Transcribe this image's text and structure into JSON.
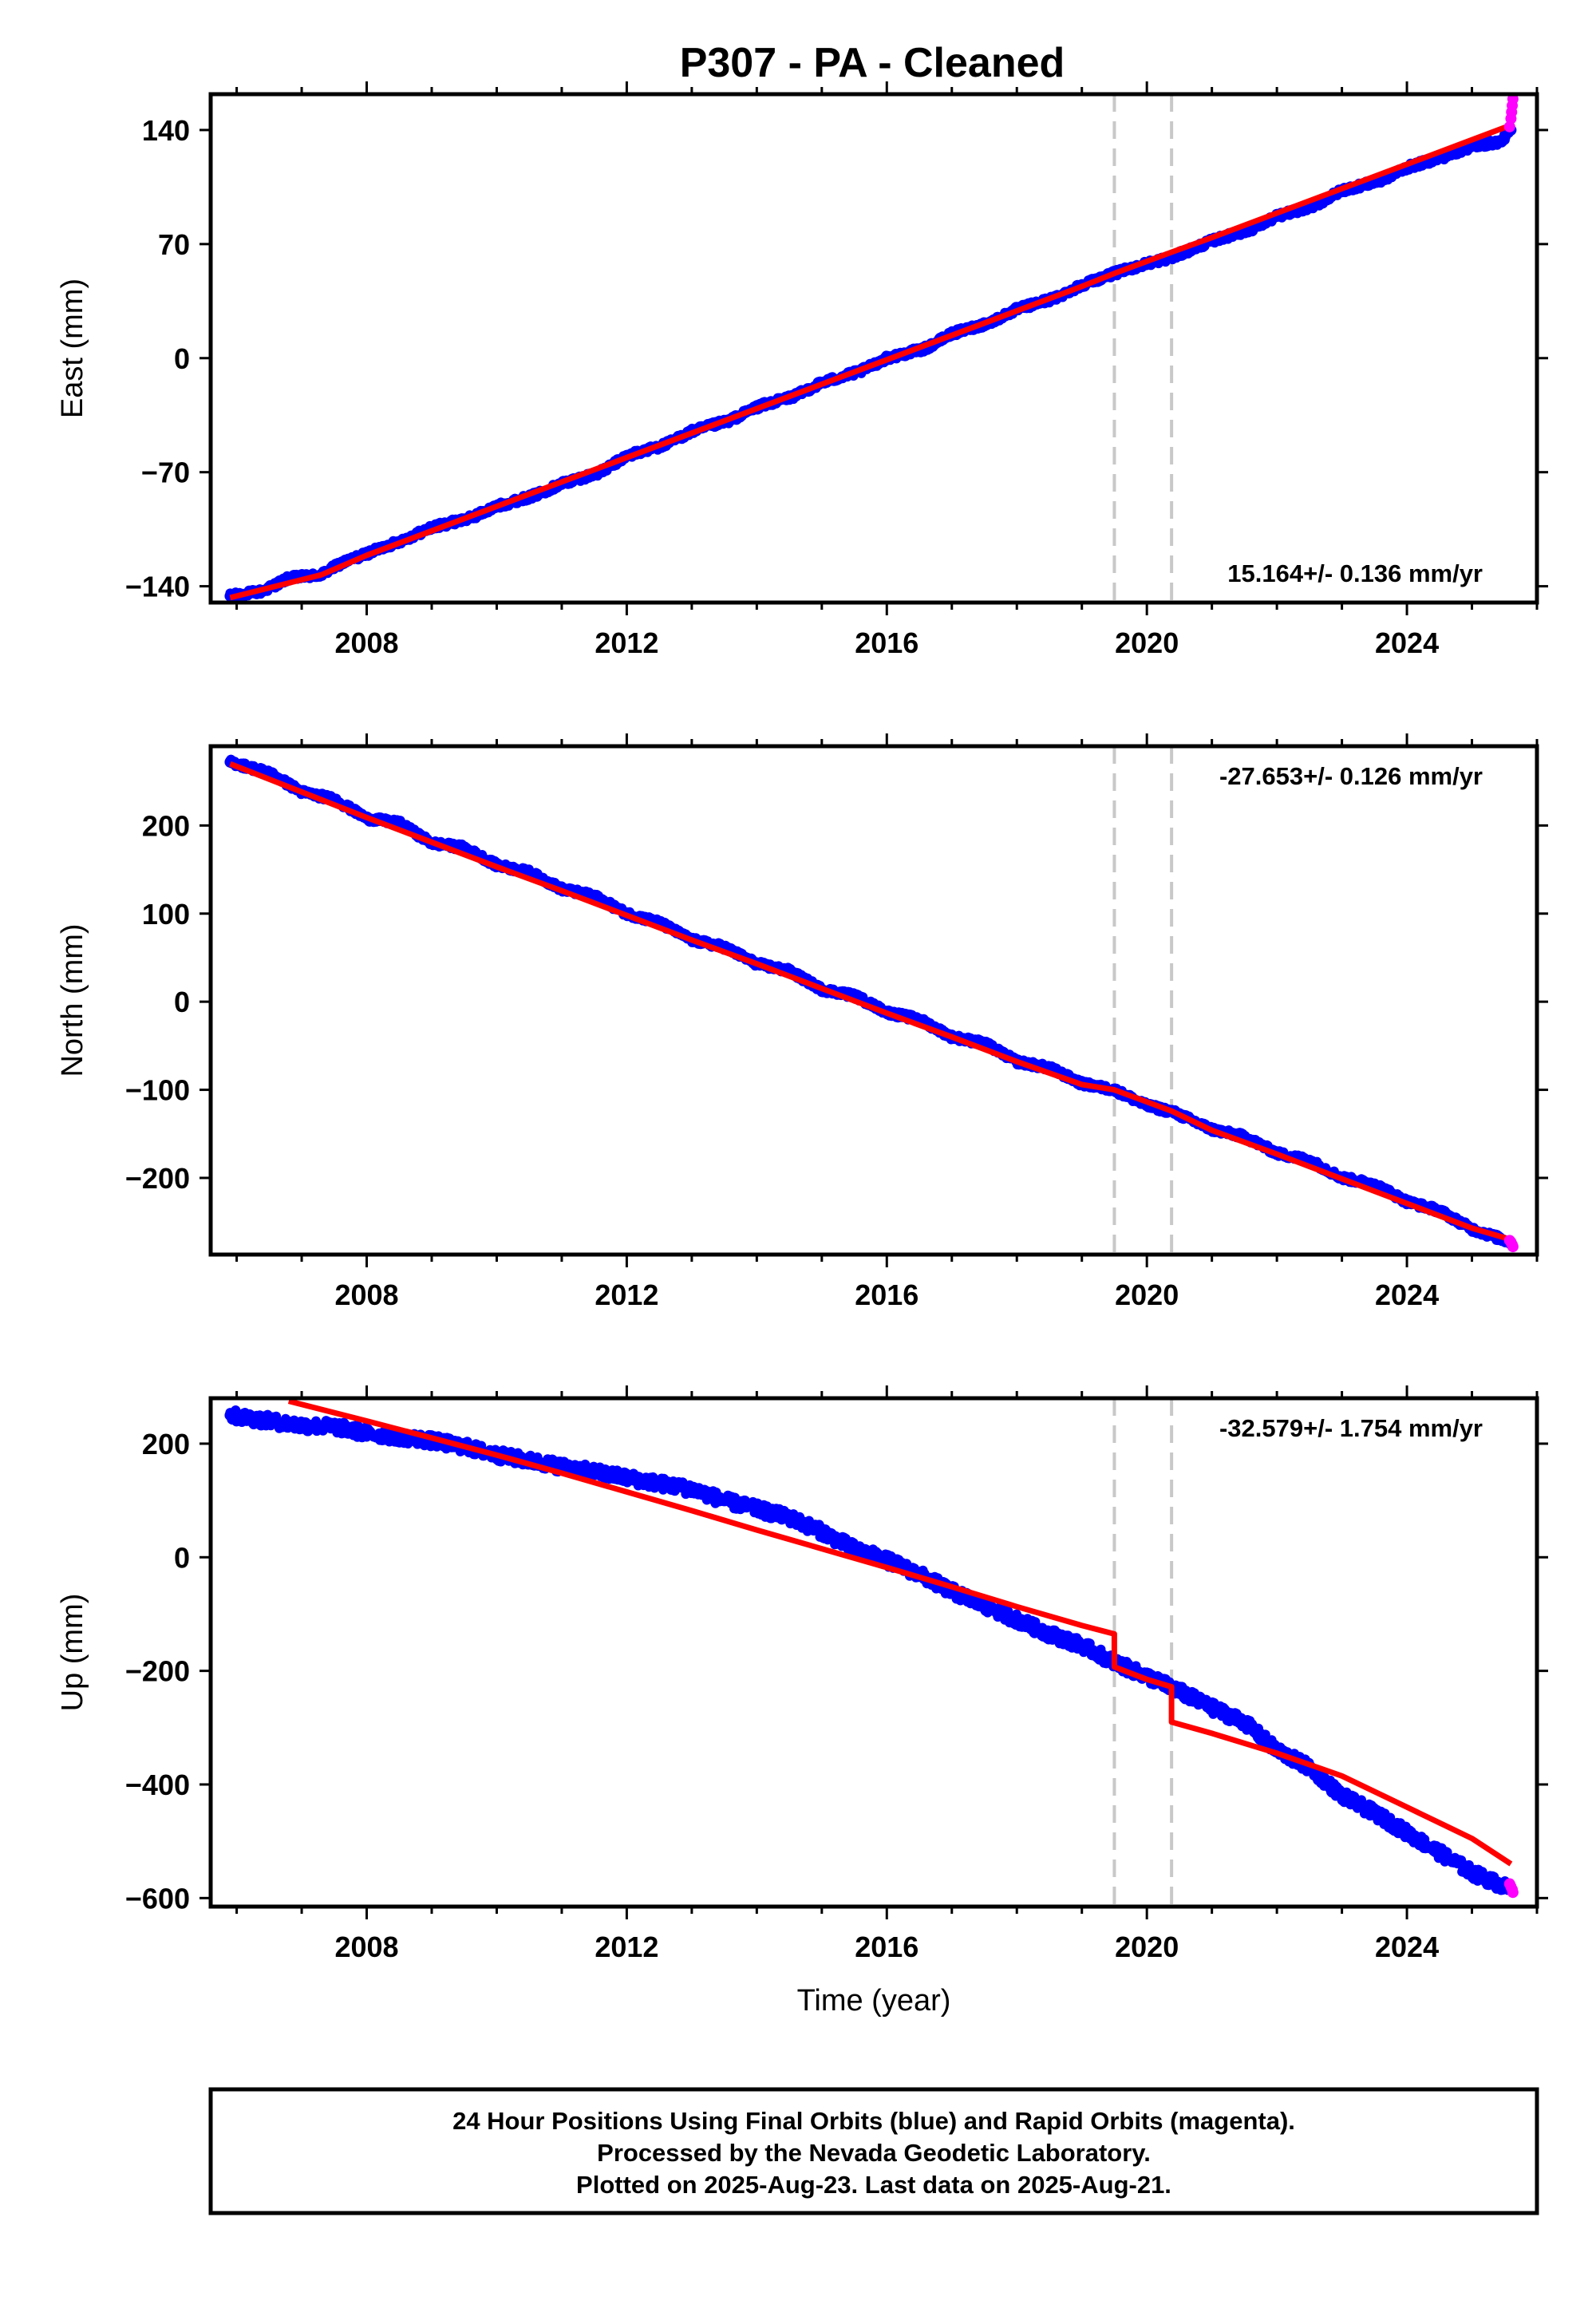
{
  "title": "P307  - PA - Cleaned",
  "colors": {
    "final": "#0000ff",
    "rapid": "#ff00ff",
    "model": "#ff0000",
    "event_line": "#c8c8c8",
    "frame": "#000000"
  },
  "chart_data": [
    {
      "type": "scatter",
      "ylabel": "East (mm)",
      "xlabel": "",
      "xlim": [
        2005.6,
        2026.0
      ],
      "ylim": [
        -150,
        162
      ],
      "yticks": [
        -140,
        -70,
        0,
        70,
        140
      ],
      "xticks": [
        2008,
        2012,
        2016,
        2020,
        2024
      ],
      "grid": false,
      "rate": "15.164+/- 0.136 mm/yr",
      "rate_position": "bottom-right",
      "event_lines": [
        2019.5,
        2020.38
      ],
      "final_series": [
        [
          2005.9,
          -146
        ],
        [
          2006.4,
          -143
        ],
        [
          2006.8,
          -135
        ],
        [
          2007.3,
          -133
        ],
        [
          2007.6,
          -126
        ],
        [
          2008.0,
          -120
        ],
        [
          2008.6,
          -111
        ],
        [
          2009.0,
          -104
        ],
        [
          2009.6,
          -98
        ],
        [
          2010.0,
          -91
        ],
        [
          2010.6,
          -84
        ],
        [
          2011.0,
          -77
        ],
        [
          2011.6,
          -70
        ],
        [
          2012.0,
          -60
        ],
        [
          2012.6,
          -53
        ],
        [
          2013.0,
          -45
        ],
        [
          2013.6,
          -38
        ],
        [
          2014.0,
          -30
        ],
        [
          2014.6,
          -23
        ],
        [
          2015.0,
          -15
        ],
        [
          2015.6,
          -8
        ],
        [
          2016.0,
          0
        ],
        [
          2016.6,
          6
        ],
        [
          2017.0,
          15
        ],
        [
          2017.6,
          22
        ],
        [
          2018.0,
          30
        ],
        [
          2018.6,
          37
        ],
        [
          2019.0,
          45
        ],
        [
          2019.5,
          52
        ],
        [
          2020.0,
          58
        ],
        [
          2020.4,
          62
        ],
        [
          2021.0,
          72
        ],
        [
          2021.6,
          79
        ],
        [
          2022.0,
          87
        ],
        [
          2022.6,
          94
        ],
        [
          2023.0,
          103
        ],
        [
          2023.6,
          109
        ],
        [
          2024.0,
          117
        ],
        [
          2024.6,
          124
        ],
        [
          2025.0,
          130
        ],
        [
          2025.45,
          133
        ],
        [
          2025.6,
          140
        ]
      ],
      "model_series": [
        [
          2005.9,
          -147
        ],
        [
          2006.5,
          -141
        ],
        [
          2007.3,
          -133
        ],
        [
          2008.0,
          -121
        ],
        [
          2009.0,
          -106
        ],
        [
          2010.0,
          -91
        ],
        [
          2011.0,
          -76
        ],
        [
          2012.0,
          -61
        ],
        [
          2013.0,
          -46
        ],
        [
          2014.0,
          -31
        ],
        [
          2015.0,
          -16
        ],
        [
          2016.0,
          -1
        ],
        [
          2017.0,
          14
        ],
        [
          2018.0,
          29
        ],
        [
          2019.0,
          44
        ],
        [
          2019.5,
          52
        ],
        [
          2020.38,
          65
        ],
        [
          2021.0,
          74
        ],
        [
          2022.0,
          89
        ],
        [
          2023.0,
          104
        ],
        [
          2024.0,
          119
        ],
        [
          2025.0,
          134
        ],
        [
          2025.6,
          143
        ]
      ],
      "rapid_series": [
        [
          2025.58,
          142
        ],
        [
          2025.6,
          147
        ],
        [
          2025.61,
          151
        ],
        [
          2025.62,
          155
        ],
        [
          2025.63,
          159
        ]
      ]
    },
    {
      "type": "scatter",
      "ylabel": "North (mm)",
      "xlabel": "",
      "xlim": [
        2005.6,
        2026.0
      ],
      "ylim": [
        -287,
        290
      ],
      "yticks": [
        -200,
        -100,
        0,
        100,
        200
      ],
      "xticks": [
        2008,
        2012,
        2016,
        2020,
        2024
      ],
      "grid": false,
      "rate": "-27.653+/- 0.126 mm/yr",
      "rate_position": "top-right",
      "event_lines": [
        2019.5,
        2020.38
      ],
      "final_series": [
        [
          2005.9,
          272
        ],
        [
          2006.5,
          260
        ],
        [
          2007.0,
          238
        ],
        [
          2007.5,
          230
        ],
        [
          2008.0,
          208
        ],
        [
          2008.5,
          203
        ],
        [
          2009.0,
          180
        ],
        [
          2009.5,
          175
        ],
        [
          2010.0,
          155
        ],
        [
          2010.5,
          147
        ],
        [
          2011.0,
          128
        ],
        [
          2011.5,
          120
        ],
        [
          2012.0,
          100
        ],
        [
          2012.5,
          90
        ],
        [
          2013.0,
          70
        ],
        [
          2013.5,
          62
        ],
        [
          2014.0,
          43
        ],
        [
          2014.5,
          35
        ],
        [
          2015.0,
          14
        ],
        [
          2015.5,
          7
        ],
        [
          2016.0,
          -12
        ],
        [
          2016.5,
          -20
        ],
        [
          2017.0,
          -40
        ],
        [
          2017.5,
          -47
        ],
        [
          2018.0,
          -68
        ],
        [
          2018.5,
          -75
        ],
        [
          2019.0,
          -93
        ],
        [
          2019.5,
          -100
        ],
        [
          2020.0,
          -118
        ],
        [
          2020.4,
          -125
        ],
        [
          2021.0,
          -145
        ],
        [
          2021.5,
          -153
        ],
        [
          2022.0,
          -172
        ],
        [
          2022.5,
          -180
        ],
        [
          2023.0,
          -200
        ],
        [
          2023.5,
          -207
        ],
        [
          2024.0,
          -227
        ],
        [
          2024.5,
          -237
        ],
        [
          2025.0,
          -258
        ],
        [
          2025.6,
          -273
        ]
      ],
      "model_series": [
        [
          2005.9,
          270
        ],
        [
          2007.0,
          238
        ],
        [
          2008.0,
          209
        ],
        [
          2009.0,
          181
        ],
        [
          2010.0,
          153
        ],
        [
          2011.0,
          126
        ],
        [
          2012.0,
          98
        ],
        [
          2013.0,
          70
        ],
        [
          2014.0,
          43
        ],
        [
          2015.0,
          15
        ],
        [
          2016.0,
          -13
        ],
        [
          2017.0,
          -40
        ],
        [
          2018.0,
          -68
        ],
        [
          2019.0,
          -94
        ],
        [
          2019.5,
          -100
        ],
        [
          2020.38,
          -124
        ],
        [
          2021.0,
          -146
        ],
        [
          2022.0,
          -173
        ],
        [
          2023.0,
          -201
        ],
        [
          2024.0,
          -229
        ],
        [
          2025.0,
          -257
        ],
        [
          2025.6,
          -270
        ]
      ],
      "rapid_series": [
        [
          2025.58,
          -271
        ],
        [
          2025.6,
          -273
        ],
        [
          2025.62,
          -276
        ],
        [
          2025.63,
          -278
        ]
      ]
    },
    {
      "type": "scatter",
      "ylabel": "Up (mm)",
      "xlabel": "Time (year)",
      "xlim": [
        2005.6,
        2026.0
      ],
      "ylim": [
        -615,
        280
      ],
      "yticks": [
        -600,
        -400,
        -200,
        0,
        200
      ],
      "xticks": [
        2008,
        2012,
        2016,
        2020,
        2024
      ],
      "grid": false,
      "rate": "-32.579+/- 1.754 mm/yr",
      "rate_position": "top-right",
      "event_lines": [
        2019.5,
        2020.38
      ],
      "final_series": [
        [
          2005.9,
          250
        ],
        [
          2006.5,
          240
        ],
        [
          2007.0,
          232
        ],
        [
          2007.5,
          230
        ],
        [
          2008.0,
          218
        ],
        [
          2008.5,
          212
        ],
        [
          2009.0,
          205
        ],
        [
          2009.5,
          195
        ],
        [
          2010.0,
          180
        ],
        [
          2010.5,
          170
        ],
        [
          2011.0,
          160
        ],
        [
          2011.5,
          150
        ],
        [
          2012.0,
          140
        ],
        [
          2012.5,
          130
        ],
        [
          2013.0,
          120
        ],
        [
          2013.5,
          100
        ],
        [
          2014.0,
          85
        ],
        [
          2014.5,
          70
        ],
        [
          2015.0,
          45
        ],
        [
          2015.5,
          15
        ],
        [
          2016.0,
          -5
        ],
        [
          2016.5,
          -30
        ],
        [
          2017.0,
          -60
        ],
        [
          2017.5,
          -85
        ],
        [
          2018.0,
          -110
        ],
        [
          2018.5,
          -135
        ],
        [
          2019.0,
          -155
        ],
        [
          2019.5,
          -185
        ],
        [
          2020.0,
          -210
        ],
        [
          2020.4,
          -230
        ],
        [
          2021.0,
          -265
        ],
        [
          2021.5,
          -290
        ],
        [
          2022.0,
          -340
        ],
        [
          2022.5,
          -370
        ],
        [
          2023.0,
          -420
        ],
        [
          2023.5,
          -450
        ],
        [
          2024.0,
          -485
        ],
        [
          2024.5,
          -520
        ],
        [
          2025.0,
          -555
        ],
        [
          2025.6,
          -585
        ]
      ],
      "model_series": [
        [
          2006.8,
          275
        ],
        [
          2008.0,
          240
        ],
        [
          2009.0,
          210
        ],
        [
          2010.0,
          180
        ],
        [
          2011.0,
          148
        ],
        [
          2012.0,
          115
        ],
        [
          2013.0,
          82
        ],
        [
          2014.0,
          48
        ],
        [
          2015.0,
          15
        ],
        [
          2016.0,
          -18
        ],
        [
          2017.0,
          -52
        ],
        [
          2018.0,
          -87
        ],
        [
          2019.0,
          -120
        ],
        [
          2019.5,
          -135
        ],
        [
          2019.5,
          -193
        ],
        [
          2020.0,
          -215
        ],
        [
          2020.38,
          -228
        ],
        [
          2020.38,
          -290
        ],
        [
          2021.0,
          -310
        ],
        [
          2022.0,
          -345
        ],
        [
          2023.0,
          -385
        ],
        [
          2024.0,
          -440
        ],
        [
          2025.0,
          -495
        ],
        [
          2025.6,
          -540
        ]
      ],
      "rapid_series": [
        [
          2025.58,
          -575
        ],
        [
          2025.6,
          -580
        ],
        [
          2025.62,
          -585
        ],
        [
          2025.63,
          -590
        ]
      ]
    }
  ],
  "footer": {
    "line1": "24 Hour Positions Using Final Orbits (blue) and Rapid Orbits (magenta).",
    "line2": "Processed by the Nevada Geodetic Laboratory.",
    "line3": "Plotted on 2025-Aug-23. Last data on 2025-Aug-21."
  }
}
